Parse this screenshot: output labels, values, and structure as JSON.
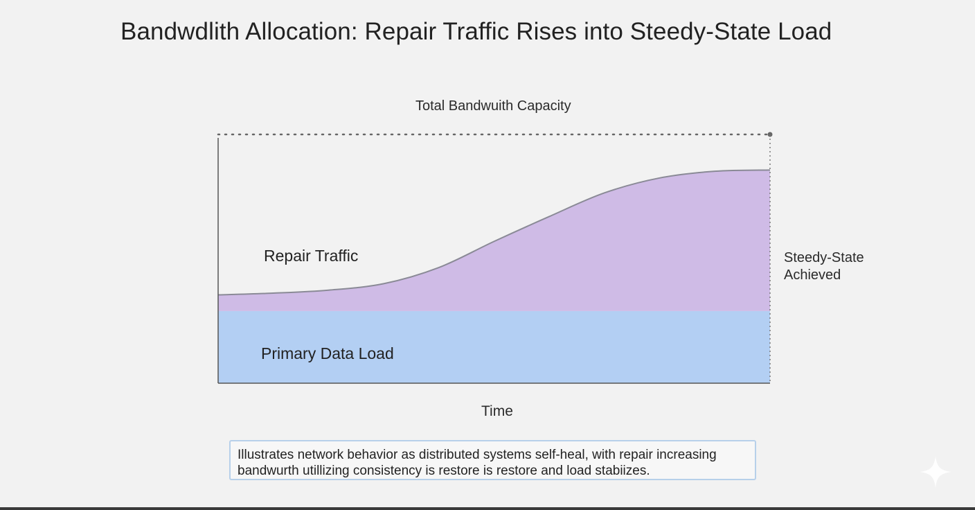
{
  "title": "Bandwdlith Allocation: Repair Traffic Rises into Steedy-State Load",
  "chart_data": {
    "type": "area",
    "stacked": true,
    "xlabel": "Time",
    "capacity_label": "Total Bandwuith Capacity",
    "capacity": 100,
    "ylim": [
      0,
      100
    ],
    "x": [
      0,
      10,
      20,
      30,
      40,
      50,
      60,
      70,
      80,
      90,
      100
    ],
    "series": [
      {
        "name": "Primary Data Load",
        "color": "#b3cff3",
        "values": [
          29,
          29,
          29,
          29,
          29,
          29,
          29,
          29,
          29,
          29,
          29
        ]
      },
      {
        "name": "Repair Traffic",
        "color": "#cfbbe6",
        "values": [
          6.5,
          7.2,
          8.4,
          11.0,
          17.5,
          28.0,
          38.0,
          47.5,
          53.5,
          56.2,
          56.7
        ]
      }
    ],
    "annotations": [
      {
        "text_lines": [
          "Steedy-State",
          "Achieved"
        ],
        "at_x": 100
      }
    ],
    "grid": false
  },
  "caption": {
    "line1": "Illustrates network behavior as distributed systems self-heal, with repair       increasing",
    "line2": "bandwurth utillizing consistency is restore is restore and load stabiizes."
  },
  "colors": {
    "background": "#f2f2f2",
    "primary_fill": "#b3cff3",
    "repair_fill": "#cfbbe6",
    "repair_line": "#8a8a96",
    "axis": "#555555",
    "caption_border": "#b7d0ea"
  }
}
